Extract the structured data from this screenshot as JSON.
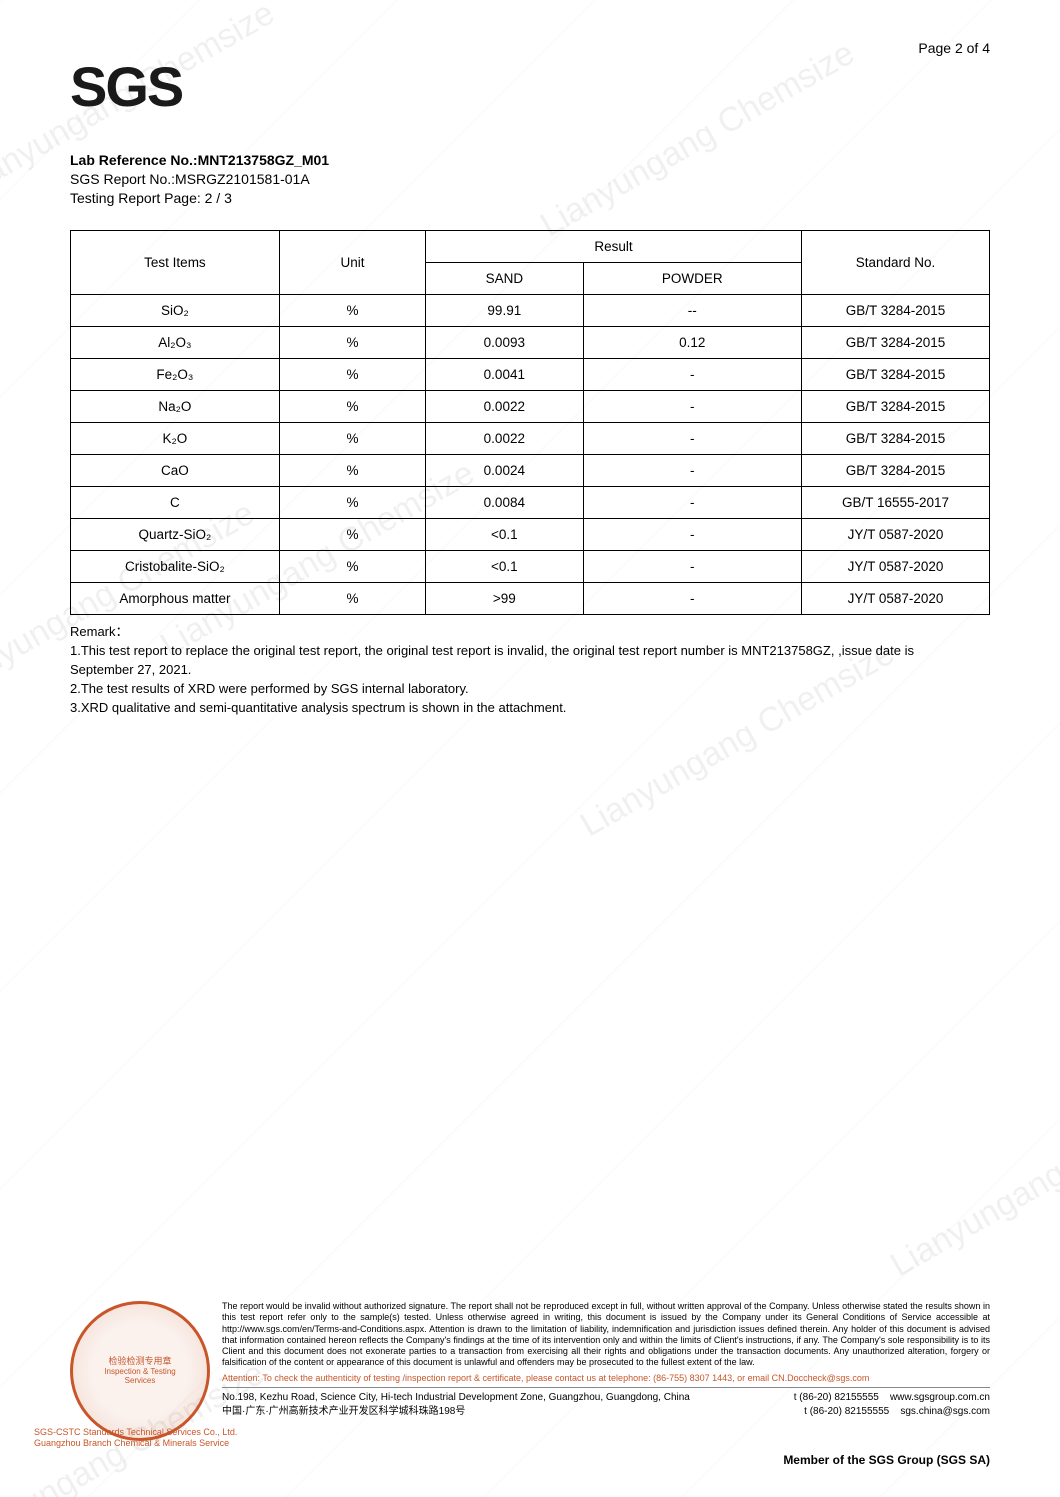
{
  "page_label": "Page 2 of 4",
  "logo_text": "SGS",
  "ref": {
    "lab_ref_label": "Lab Reference No.:",
    "lab_ref_value": "MNT213758GZ_M01",
    "sgs_report_label": "SGS Report No.:",
    "sgs_report_value": "MSRGZ2101581-01A",
    "testing_page_label": "Testing Report Page: 2 / 3"
  },
  "table": {
    "headers": {
      "items": "Test Items",
      "unit": "Unit",
      "result": "Result",
      "sand": "SAND",
      "powder": "POWDER",
      "standard": "Standard No."
    },
    "rows": [
      {
        "item": "SiO₂",
        "unit": "%",
        "sand": "99.91",
        "powder": "--",
        "std": "GB/T 3284-2015"
      },
      {
        "item": "Al₂O₃",
        "unit": "%",
        "sand": "0.0093",
        "powder": "0.12",
        "std": "GB/T 3284-2015"
      },
      {
        "item": "Fe₂O₃",
        "unit": "%",
        "sand": "0.0041",
        "powder": "-",
        "std": "GB/T 3284-2015"
      },
      {
        "item": "Na₂O",
        "unit": "%",
        "sand": "0.0022",
        "powder": "-",
        "std": "GB/T 3284-2015"
      },
      {
        "item": "K₂O",
        "unit": "%",
        "sand": "0.0022",
        "powder": "-",
        "std": "GB/T 3284-2015"
      },
      {
        "item": "CaO",
        "unit": "%",
        "sand": "0.0024",
        "powder": "-",
        "std": "GB/T 3284-2015"
      },
      {
        "item": "C",
        "unit": "%",
        "sand": "0.0084",
        "powder": "-",
        "std": "GB/T 16555-2017"
      },
      {
        "item": "Quartz-SiO₂",
        "unit": "%",
        "sand": "<0.1",
        "powder": "-",
        "std": "JY/T 0587-2020"
      },
      {
        "item": "Cristobalite-SiO₂",
        "unit": "%",
        "sand": "<0.1",
        "powder": "-",
        "std": "JY/T 0587-2020"
      },
      {
        "item": "Amorphous matter",
        "unit": "%",
        "sand": ">99",
        "powder": "-",
        "std": "JY/T 0587-2020"
      }
    ]
  },
  "remarks": {
    "label": "Remark：",
    "items": [
      "1.This test report to replace the original test report, the original test report is invalid, the original test report number is MNT213758GZ, ,issue date is September 27, 2021.",
      "2.The test results of XRD were performed by SGS internal laboratory.",
      "3.XRD qualitative and semi-quantitative analysis spectrum is shown in the attachment."
    ]
  },
  "watermark_text": "Lianyungang Chemsize",
  "seal": {
    "center_cn": "检验检测专用章",
    "center_en": "Inspection & Testing Services",
    "side1": "SGS-CSTC Standards Technical Services Co., Ltd.",
    "side2": "Guangzhou Branch Chemical & Minerals Service"
  },
  "disclaimer": {
    "body": "The report would be invalid without authorized signature. The report shall not be reproduced except in full, without written approval of the Company. Unless otherwise stated the results shown in this test report refer only to the sample(s) tested. Unless otherwise agreed in writing, this document is issued by the Company under its General Conditions of Service accessible at http://www.sgs.com/en/Terms-and-Conditions.aspx. Attention is drawn to the limitation of liability, indemnification and jurisdiction issues defined therein. Any holder of this document is advised that information contained hereon reflects the Company's findings at the time of its intervention only and within the limits of Client's instructions, if any. The Company's sole responsibility is to its Client and this document does not exonerate parties to a transaction from exercising all their rights and obligations under the transaction documents. Any unauthorized alteration, forgery or falsification of the content or appearance of this document is unlawful and offenders may be prosecuted to the fullest extent of the law.",
    "attention": "Attention: To check the authenticity of testing /inspection report & certificate, please contact us at telephone: (86-755) 8307 1443, or email CN.Doccheck@sgs.com"
  },
  "address": {
    "en": "No.198, Kezhu Road, Science City, Hi-tech Industrial Development Zone, Guangzhou, Guangdong, China",
    "cn": "中国·广东·广州高新技术产业开发区科学城科珠路198号",
    "tel1": "t (86-20) 82155555",
    "tel2": "t (86-20) 82155555",
    "web": "www.sgsgroup.com.cn",
    "email": "sgs.china@sgs.com"
  },
  "member": "Member of the SGS Group (SGS SA)"
}
